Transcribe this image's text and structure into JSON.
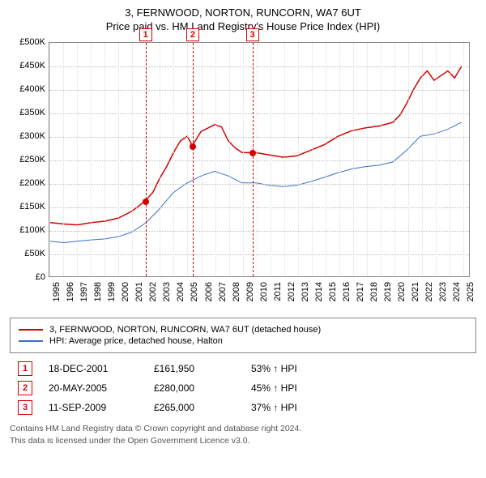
{
  "title": "3, FERNWOOD, NORTON, RUNCORN, WA7 6UT",
  "subtitle": "Price paid vs. HM Land Registry's House Price Index (HPI)",
  "chart": {
    "type": "line",
    "xlim": [
      1995,
      2025.5
    ],
    "ylim": [
      0,
      500000
    ],
    "ytick_step": 50000,
    "yticks": [
      "£0",
      "£50K",
      "£100K",
      "£150K",
      "£200K",
      "£250K",
      "£300K",
      "£350K",
      "£400K",
      "£450K",
      "£500K"
    ],
    "xticks": [
      1995,
      1996,
      1997,
      1998,
      1999,
      2000,
      2001,
      2002,
      2003,
      2004,
      2005,
      2006,
      2007,
      2008,
      2009,
      2010,
      2011,
      2012,
      2013,
      2014,
      2015,
      2016,
      2017,
      2018,
      2019,
      2020,
      2021,
      2022,
      2023,
      2024,
      2025
    ],
    "background_color": "#ffffff",
    "grid_color": "#cccccc",
    "series": [
      {
        "name": "property",
        "label": "3, FERNWOOD, NORTON, RUNCORN, WA7 6UT (detached house)",
        "color": "#d40000",
        "width": 1.5,
        "data": [
          [
            1995,
            115000
          ],
          [
            1996,
            112000
          ],
          [
            1997,
            110000
          ],
          [
            1998,
            115000
          ],
          [
            1999,
            118000
          ],
          [
            2000,
            125000
          ],
          [
            2001,
            140000
          ],
          [
            2001.96,
            161950
          ],
          [
            2002.5,
            180000
          ],
          [
            2003,
            210000
          ],
          [
            2003.5,
            235000
          ],
          [
            2004,
            265000
          ],
          [
            2004.5,
            290000
          ],
          [
            2005,
            300000
          ],
          [
            2005.38,
            280000
          ],
          [
            2006,
            310000
          ],
          [
            2007,
            325000
          ],
          [
            2007.5,
            320000
          ],
          [
            2008,
            290000
          ],
          [
            2008.5,
            275000
          ],
          [
            2009,
            265000
          ],
          [
            2009.7,
            265000
          ],
          [
            2010,
            265000
          ],
          [
            2011,
            260000
          ],
          [
            2012,
            255000
          ],
          [
            2013,
            258000
          ],
          [
            2014,
            270000
          ],
          [
            2015,
            282000
          ],
          [
            2016,
            300000
          ],
          [
            2017,
            312000
          ],
          [
            2018,
            318000
          ],
          [
            2019,
            322000
          ],
          [
            2020,
            330000
          ],
          [
            2020.5,
            345000
          ],
          [
            2021,
            370000
          ],
          [
            2021.5,
            400000
          ],
          [
            2022,
            425000
          ],
          [
            2022.5,
            440000
          ],
          [
            2023,
            420000
          ],
          [
            2023.5,
            430000
          ],
          [
            2024,
            440000
          ],
          [
            2024.5,
            425000
          ],
          [
            2025,
            450000
          ]
        ]
      },
      {
        "name": "hpi",
        "label": "HPI: Average price, detached house, Halton",
        "color": "#3a6fc9",
        "width": 1,
        "data": [
          [
            1995,
            75000
          ],
          [
            1996,
            72000
          ],
          [
            1997,
            75000
          ],
          [
            1998,
            78000
          ],
          [
            1999,
            80000
          ],
          [
            2000,
            85000
          ],
          [
            2001,
            95000
          ],
          [
            2002,
            115000
          ],
          [
            2003,
            145000
          ],
          [
            2004,
            180000
          ],
          [
            2005,
            200000
          ],
          [
            2006,
            215000
          ],
          [
            2007,
            225000
          ],
          [
            2008,
            215000
          ],
          [
            2009,
            200000
          ],
          [
            2010,
            200000
          ],
          [
            2011,
            195000
          ],
          [
            2012,
            192000
          ],
          [
            2013,
            195000
          ],
          [
            2014,
            203000
          ],
          [
            2015,
            212000
          ],
          [
            2016,
            222000
          ],
          [
            2017,
            230000
          ],
          [
            2018,
            235000
          ],
          [
            2019,
            238000
          ],
          [
            2020,
            245000
          ],
          [
            2021,
            270000
          ],
          [
            2022,
            300000
          ],
          [
            2023,
            305000
          ],
          [
            2024,
            315000
          ],
          [
            2025,
            330000
          ]
        ]
      }
    ],
    "markers": [
      {
        "n": "1",
        "x": 2001.96,
        "y_label": -18,
        "color": "#d40000",
        "point_y": 161950
      },
      {
        "n": "2",
        "x": 2005.38,
        "y_label": -18,
        "color": "#d40000",
        "point_y": 280000
      },
      {
        "n": "3",
        "x": 2009.7,
        "y_label": -18,
        "color": "#d40000",
        "point_y": 265000
      }
    ]
  },
  "legend": [
    {
      "color": "#d40000",
      "label": "3, FERNWOOD, NORTON, RUNCORN, WA7 6UT (detached house)"
    },
    {
      "color": "#3a6fc9",
      "label": "HPI: Average price, detached house, Halton"
    }
  ],
  "transactions": [
    {
      "n": "1",
      "color": "#d40000",
      "date": "18-DEC-2001",
      "price": "£161,950",
      "pct": "53% ↑ HPI"
    },
    {
      "n": "2",
      "color": "#d40000",
      "date": "20-MAY-2005",
      "price": "£280,000",
      "pct": "45% ↑ HPI"
    },
    {
      "n": "3",
      "color": "#d40000",
      "date": "11-SEP-2009",
      "price": "£265,000",
      "pct": "37% ↑ HPI"
    }
  ],
  "footer_line1": "Contains HM Land Registry data © Crown copyright and database right 2024.",
  "footer_line2": "This data is licensed under the Open Government Licence v3.0."
}
